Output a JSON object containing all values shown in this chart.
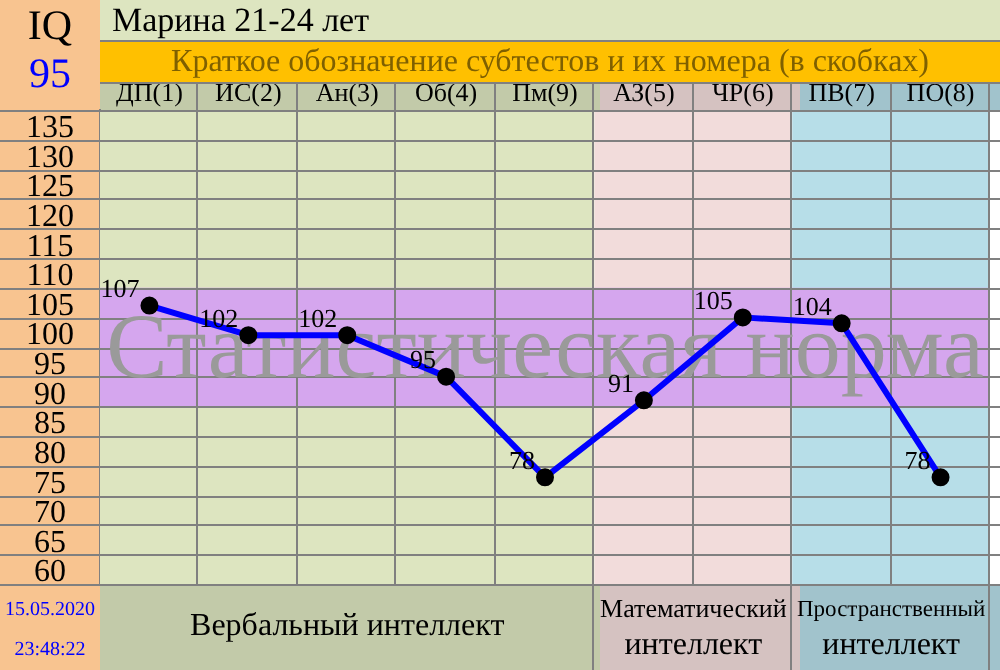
{
  "chart_data": {
    "type": "line",
    "title": "Марина 21-24 лет",
    "subtitle": "Краткое обозначение субтестов и их номера (в скобках)",
    "categories": [
      "ДП(1)",
      "ИС(2)",
      "Ан(3)",
      "Об(4)",
      "Пм(9)",
      "АЗ(5)",
      "ЧР(6)",
      "ПВ(7)",
      "ПО(8)"
    ],
    "series": [
      {
        "color": "#0000ff",
        "values": [
          107,
          102,
          102,
          95,
          78,
          91,
          105,
          104,
          78
        ]
      }
    ],
    "ylim": [
      60,
      140
    ],
    "yticks": [
      60,
      65,
      70,
      75,
      80,
      85,
      90,
      95,
      100,
      105,
      110,
      115,
      120,
      125,
      130,
      135
    ],
    "grid": true,
    "legend": false,
    "marker": "circle",
    "line_style": "solid",
    "data_labels": true,
    "bands": [
      {
        "axis": "x",
        "from": "ДП(1)",
        "to": "Пм(9)",
        "label": "Вербальный интеллект",
        "color": "#dde5c0"
      },
      {
        "axis": "x",
        "from": "АЗ(5)",
        "to": "ЧР(6)",
        "label": "Математический интеллект",
        "color": "#f2dcdb"
      },
      {
        "axis": "x",
        "from": "ПВ(7)",
        "to": "ПО(8)",
        "label": "Пространственный интеллект",
        "color": "#b7dee8"
      },
      {
        "axis": "y",
        "from": 90,
        "to": 110,
        "label": "Статистическая норма",
        "color": "#d5a6ee"
      }
    ],
    "annotations": [
      "IQ",
      "95",
      "15.05.2020",
      "23:48:22"
    ]
  }
}
